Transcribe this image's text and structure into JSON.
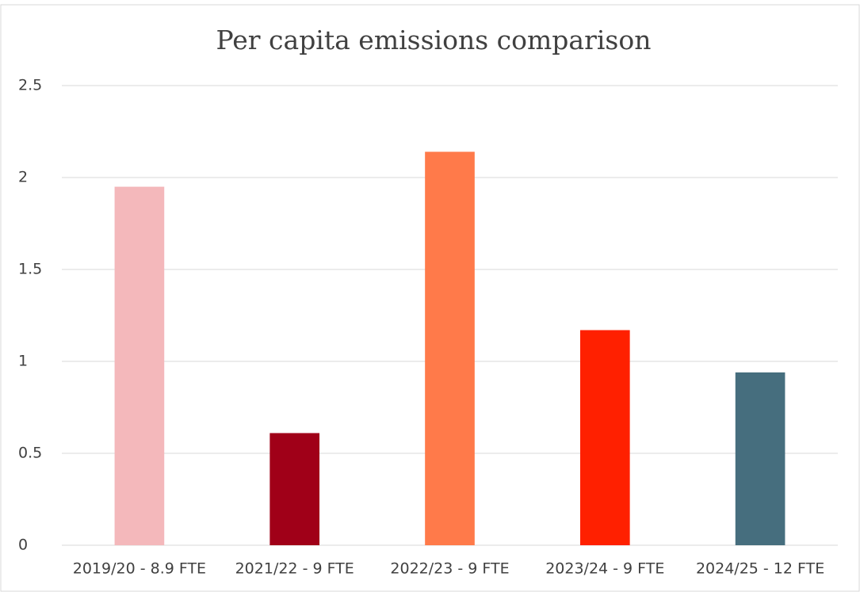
{
  "chart_data": {
    "type": "bar",
    "title": "Per capita emissions comparison",
    "categories": [
      "2019/20 - 8.9 FTE",
      "2021/22 - 9 FTE",
      "2022/23 - 9 FTE",
      "2023/24 - 9 FTE",
      "2024/25 - 12 FTE"
    ],
    "values": [
      1.95,
      0.61,
      2.14,
      1.17,
      0.94
    ],
    "colors": [
      "#f4b8bb",
      "#a00018",
      "#ff7a4a",
      "#ff2000",
      "#466e7e"
    ],
    "ylim": [
      0,
      2.5
    ],
    "yticks": [
      0,
      0.5,
      1,
      1.5,
      2,
      2.5
    ],
    "grid": true
  }
}
